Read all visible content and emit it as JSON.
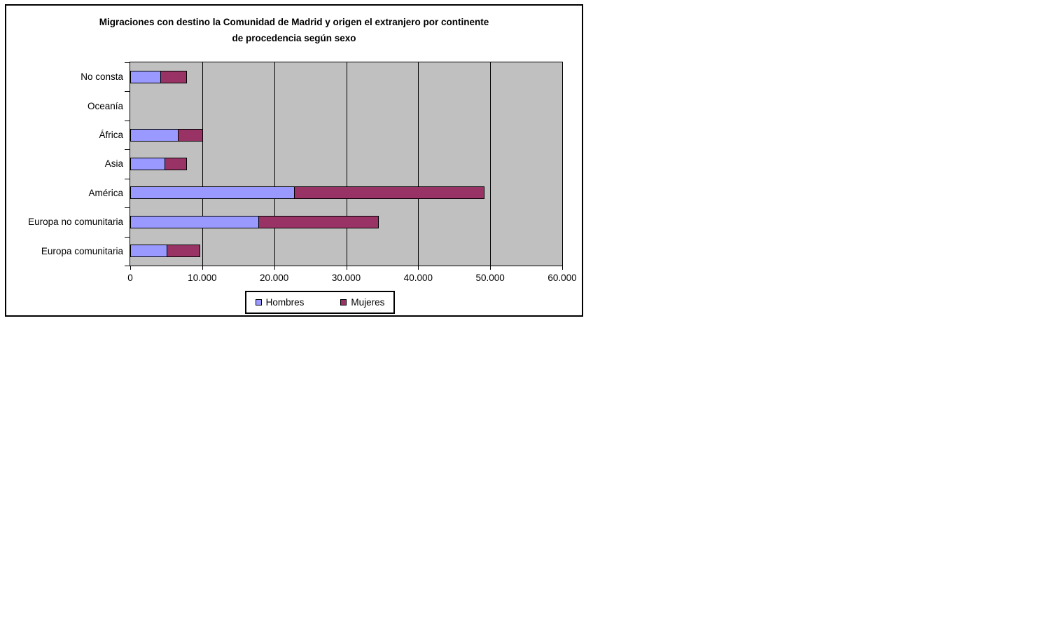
{
  "page": {
    "background_color": "#FFFFFF"
  },
  "chart": {
    "title_line1": "Migraciones con destino la Comunidad de Madrid y origen el extranjero por continente",
    "title_line2": "de procedencia según sexo"
  },
  "chart_data": {
    "type": "bar",
    "orientation": "horizontal",
    "stacked": true,
    "title": "Migraciones con destino la Comunidad de Madrid y origen el extranjero por continente de procedencia según sexo",
    "categories": [
      "No consta",
      "Oceanía",
      "África",
      "Asia",
      "América",
      "Europa no comunitaria",
      "Europa comunitaria"
    ],
    "series": [
      {
        "name": "Hombres",
        "color": "#9999FF",
        "values": [
          4300,
          0,
          6700,
          4900,
          22900,
          17900,
          5200
        ]
      },
      {
        "name": "Mujeres",
        "color": "#993366",
        "values": [
          3700,
          0,
          3500,
          3100,
          26400,
          16700,
          4600
        ]
      }
    ],
    "xlim": [
      0,
      60000
    ],
    "x_ticks": [
      {
        "value": 0,
        "label": "0"
      },
      {
        "value": 10000,
        "label": "10.000"
      },
      {
        "value": 20000,
        "label": "20.000"
      },
      {
        "value": 30000,
        "label": "30.000"
      },
      {
        "value": 40000,
        "label": "40.000"
      },
      {
        "value": 50000,
        "label": "50.000"
      },
      {
        "value": 60000,
        "label": "60.000"
      }
    ],
    "grid": "vertical-major",
    "plot_background": "#C0C0C0",
    "axis_color": "#000000",
    "legend_position": "bottom",
    "legend_labels": [
      "Hombres",
      "Mujeres"
    ]
  }
}
